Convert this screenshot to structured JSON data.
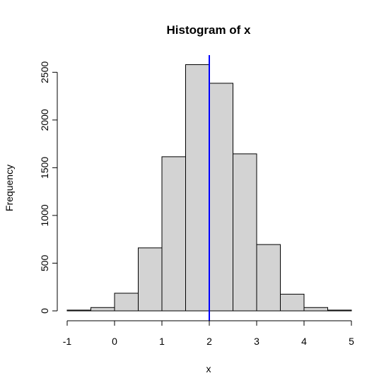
{
  "chart_data": {
    "type": "bar",
    "title": "Histogram of x",
    "xlabel": "x",
    "ylabel": "Frequency",
    "bins": [
      {
        "x0": -1.0,
        "x1": -0.5,
        "count": 8
      },
      {
        "x0": -0.5,
        "x1": 0.0,
        "count": 35
      },
      {
        "x0": 0.0,
        "x1": 0.5,
        "count": 185
      },
      {
        "x0": 0.5,
        "x1": 1.0,
        "count": 660
      },
      {
        "x0": 1.0,
        "x1": 1.5,
        "count": 1615
      },
      {
        "x0": 1.5,
        "x1": 2.0,
        "count": 2580
      },
      {
        "x0": 2.0,
        "x1": 2.5,
        "count": 2385
      },
      {
        "x0": 2.5,
        "x1": 3.0,
        "count": 1645
      },
      {
        "x0": 3.0,
        "x1": 3.5,
        "count": 695
      },
      {
        "x0": 3.5,
        "x1": 4.0,
        "count": 175
      },
      {
        "x0": 4.0,
        "x1": 4.5,
        "count": 35
      },
      {
        "x0": 4.5,
        "x1": 5.0,
        "count": 8
      }
    ],
    "xlim": [
      -1,
      5
    ],
    "ylim": [
      0,
      2580
    ],
    "x_ticks": [
      -1,
      0,
      1,
      2,
      3,
      4,
      5
    ],
    "x_tick_labels": [
      "-1",
      "0",
      "1",
      "2",
      "3",
      "4",
      "5"
    ],
    "y_ticks": [
      0,
      500,
      1000,
      1500,
      2000,
      2500
    ],
    "y_tick_labels": [
      "0",
      "500",
      "1000",
      "1500",
      "2000",
      "2500"
    ],
    "vline": {
      "x": 2,
      "color": "#0000ff"
    },
    "bar_color": "#d3d3d3",
    "grid": false
  }
}
